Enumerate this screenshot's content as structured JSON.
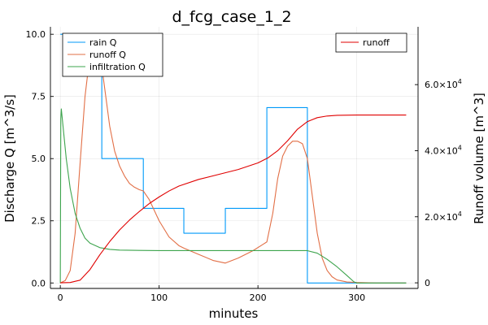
{
  "chart_data": {
    "type": "line",
    "title": "d_fcg_case_1_2",
    "xlabel": "minutes",
    "ylabel": "Discharge Q [m^3/s]",
    "y2label": "Runoff volume [m^3]",
    "xlim": [
      -10,
      362
    ],
    "ylim": [
      -0.22,
      10.3
    ],
    "y2lim": [
      -1700,
      77500
    ],
    "xticks": [
      0,
      100,
      200,
      300
    ],
    "yticks": [
      0.0,
      2.5,
      5.0,
      7.5,
      10.0
    ],
    "ytick_labels": [
      "0.0",
      "2.5",
      "5.0",
      "7.5",
      "10.0"
    ],
    "y2ticks": [
      0,
      20000,
      40000,
      60000
    ],
    "y2tick_labels": [
      {
        "mant": "0",
        "exp": ""
      },
      {
        "mant": "2.0×10",
        "exp": "4"
      },
      {
        "mant": "4.0×10",
        "exp": "4"
      },
      {
        "mant": "6.0×10",
        "exp": "4"
      }
    ],
    "grid": true,
    "legend_left_position": "top-left",
    "legend_right_position": "top-right",
    "series": [
      {
        "name": "rain Q",
        "axis": "left",
        "color": "#009af9",
        "step": true,
        "x": [
          0,
          42,
          42,
          84,
          84,
          125,
          125,
          167,
          167,
          209,
          209,
          250,
          250,
          350
        ],
        "y": [
          10,
          10,
          5,
          5,
          3,
          3,
          2,
          2,
          3,
          3,
          7.05,
          7.05,
          0,
          0
        ]
      },
      {
        "name": "runoff Q",
        "axis": "left",
        "color": "#e26f46",
        "x": [
          0,
          5,
          10,
          15,
          20,
          25,
          28,
          30,
          35,
          40,
          42,
          45,
          50,
          55,
          60,
          65,
          70,
          75,
          80,
          84,
          90,
          100,
          110,
          120,
          125,
          140,
          155,
          167,
          180,
          195,
          205,
          209,
          215,
          220,
          225,
          230,
          235,
          240,
          245,
          250,
          255,
          260,
          265,
          270,
          275,
          280,
          290,
          300,
          320,
          350
        ],
        "y": [
          0,
          0.1,
          0.5,
          2.0,
          4.8,
          7.5,
          8.5,
          8.8,
          8.9,
          8.8,
          8.7,
          7.8,
          6.3,
          5.3,
          4.7,
          4.3,
          4.0,
          3.85,
          3.75,
          3.7,
          3.35,
          2.5,
          1.85,
          1.5,
          1.4,
          1.15,
          0.9,
          0.8,
          1.0,
          1.3,
          1.55,
          1.65,
          2.8,
          4.2,
          5.1,
          5.5,
          5.7,
          5.7,
          5.6,
          5.0,
          3.5,
          2.0,
          1.0,
          0.5,
          0.25,
          0.12,
          0.04,
          0.02,
          0,
          0
        ]
      },
      {
        "name": "infiltration Q",
        "axis": "left",
        "color": "#3da44d",
        "x": [
          0,
          0.5,
          1,
          3,
          6,
          10,
          15,
          20,
          25,
          30,
          40,
          50,
          60,
          80,
          100,
          150,
          200,
          230,
          250,
          260,
          270,
          280,
          290,
          297,
          300,
          310,
          330,
          350
        ],
        "y": [
          0,
          6.6,
          7.0,
          6.2,
          5.0,
          3.8,
          2.8,
          2.2,
          1.8,
          1.6,
          1.42,
          1.35,
          1.32,
          1.31,
          1.3,
          1.3,
          1.3,
          1.3,
          1.3,
          1.2,
          0.95,
          0.65,
          0.3,
          0.05,
          0,
          0,
          0,
          0
        ]
      },
      {
        "name": "runoff",
        "axis": "right",
        "color": "#e00000",
        "x": [
          0,
          10,
          20,
          30,
          40,
          50,
          60,
          70,
          80,
          90,
          100,
          110,
          120,
          140,
          160,
          180,
          200,
          210,
          220,
          230,
          240,
          250,
          260,
          270,
          280,
          300,
          320,
          350
        ],
        "y": [
          0,
          100,
          800,
          4000,
          8500,
          12500,
          16000,
          19000,
          21600,
          24000,
          26000,
          27800,
          29300,
          31300,
          32800,
          34300,
          36300,
          37800,
          40000,
          43000,
          46500,
          48800,
          50000,
          50500,
          50700,
          50800,
          50800,
          50800
        ]
      }
    ]
  }
}
